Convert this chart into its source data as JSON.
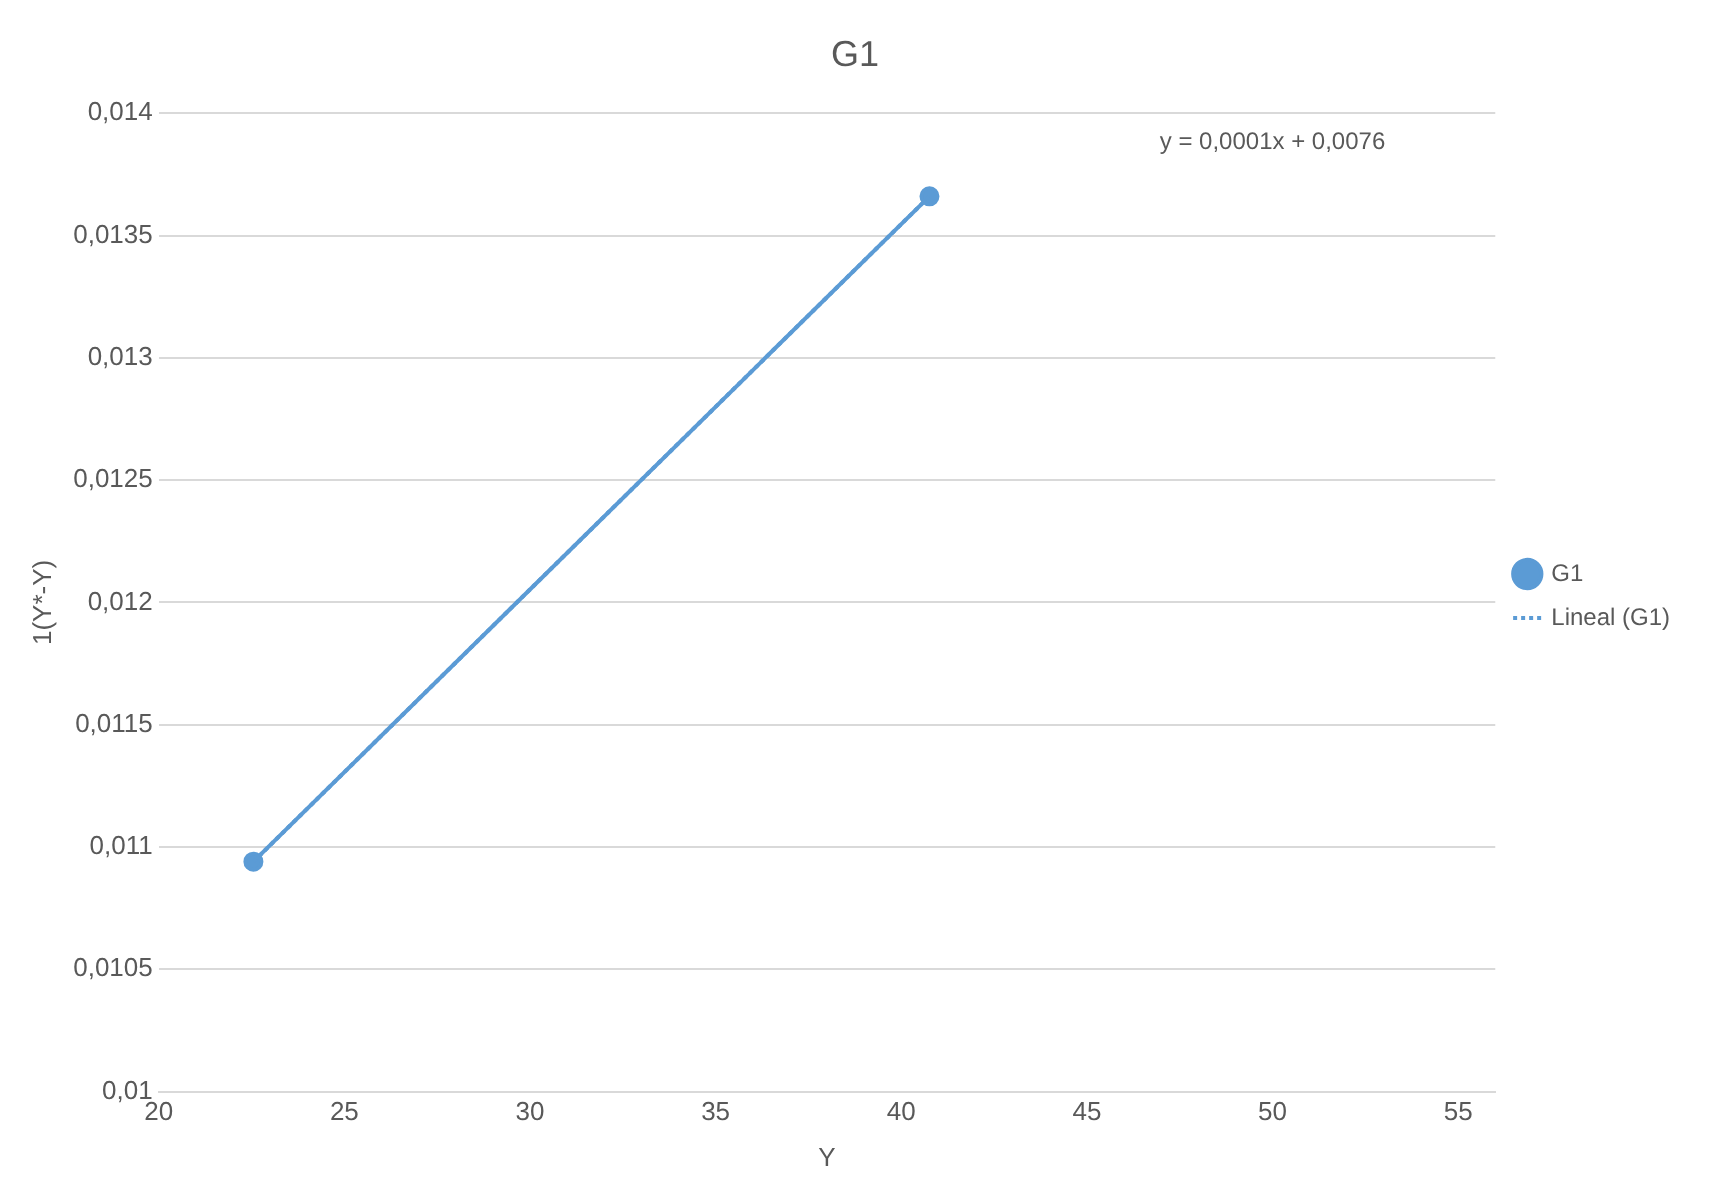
{
  "chart_data": {
    "type": "line",
    "title": "G1",
    "xlabel": "Y",
    "ylabel": "1(Y*-Y)",
    "x": [
      22.55,
      40.76
    ],
    "series": [
      {
        "name": "G1",
        "color": "#5b9bd5",
        "values": [
          0.01094,
          0.01366
        ],
        "marker": "circle",
        "line_style": "solid"
      },
      {
        "name": "Lineal (G1)",
        "type": "line",
        "color": "#5b9bd5",
        "x": [
          22.55,
          40.76
        ],
        "values": [
          0.01094,
          0.01366
        ],
        "marker": "none",
        "line_style": "dotted"
      }
    ],
    "xlim": [
      20,
      56
    ],
    "xticks": [
      20,
      25,
      30,
      35,
      40,
      45,
      50,
      55
    ],
    "ylim": [
      0.01,
      0.014
    ],
    "yticks": [
      {
        "value": 0.01,
        "label": "0,01"
      },
      {
        "value": 0.0105,
        "label": "0,0105"
      },
      {
        "value": 0.011,
        "label": "0,011"
      },
      {
        "value": 0.0115,
        "label": "0,0115"
      },
      {
        "value": 0.012,
        "label": "0,012"
      },
      {
        "value": 0.0125,
        "label": "0,0125"
      },
      {
        "value": 0.013,
        "label": "0,013"
      },
      {
        "value": 0.0135,
        "label": "0,0135"
      },
      {
        "value": 0.014,
        "label": "0,014"
      }
    ],
    "grid": "y",
    "legend": "right",
    "annotations": [
      "y = 0,0001x + 0,0076"
    ]
  }
}
